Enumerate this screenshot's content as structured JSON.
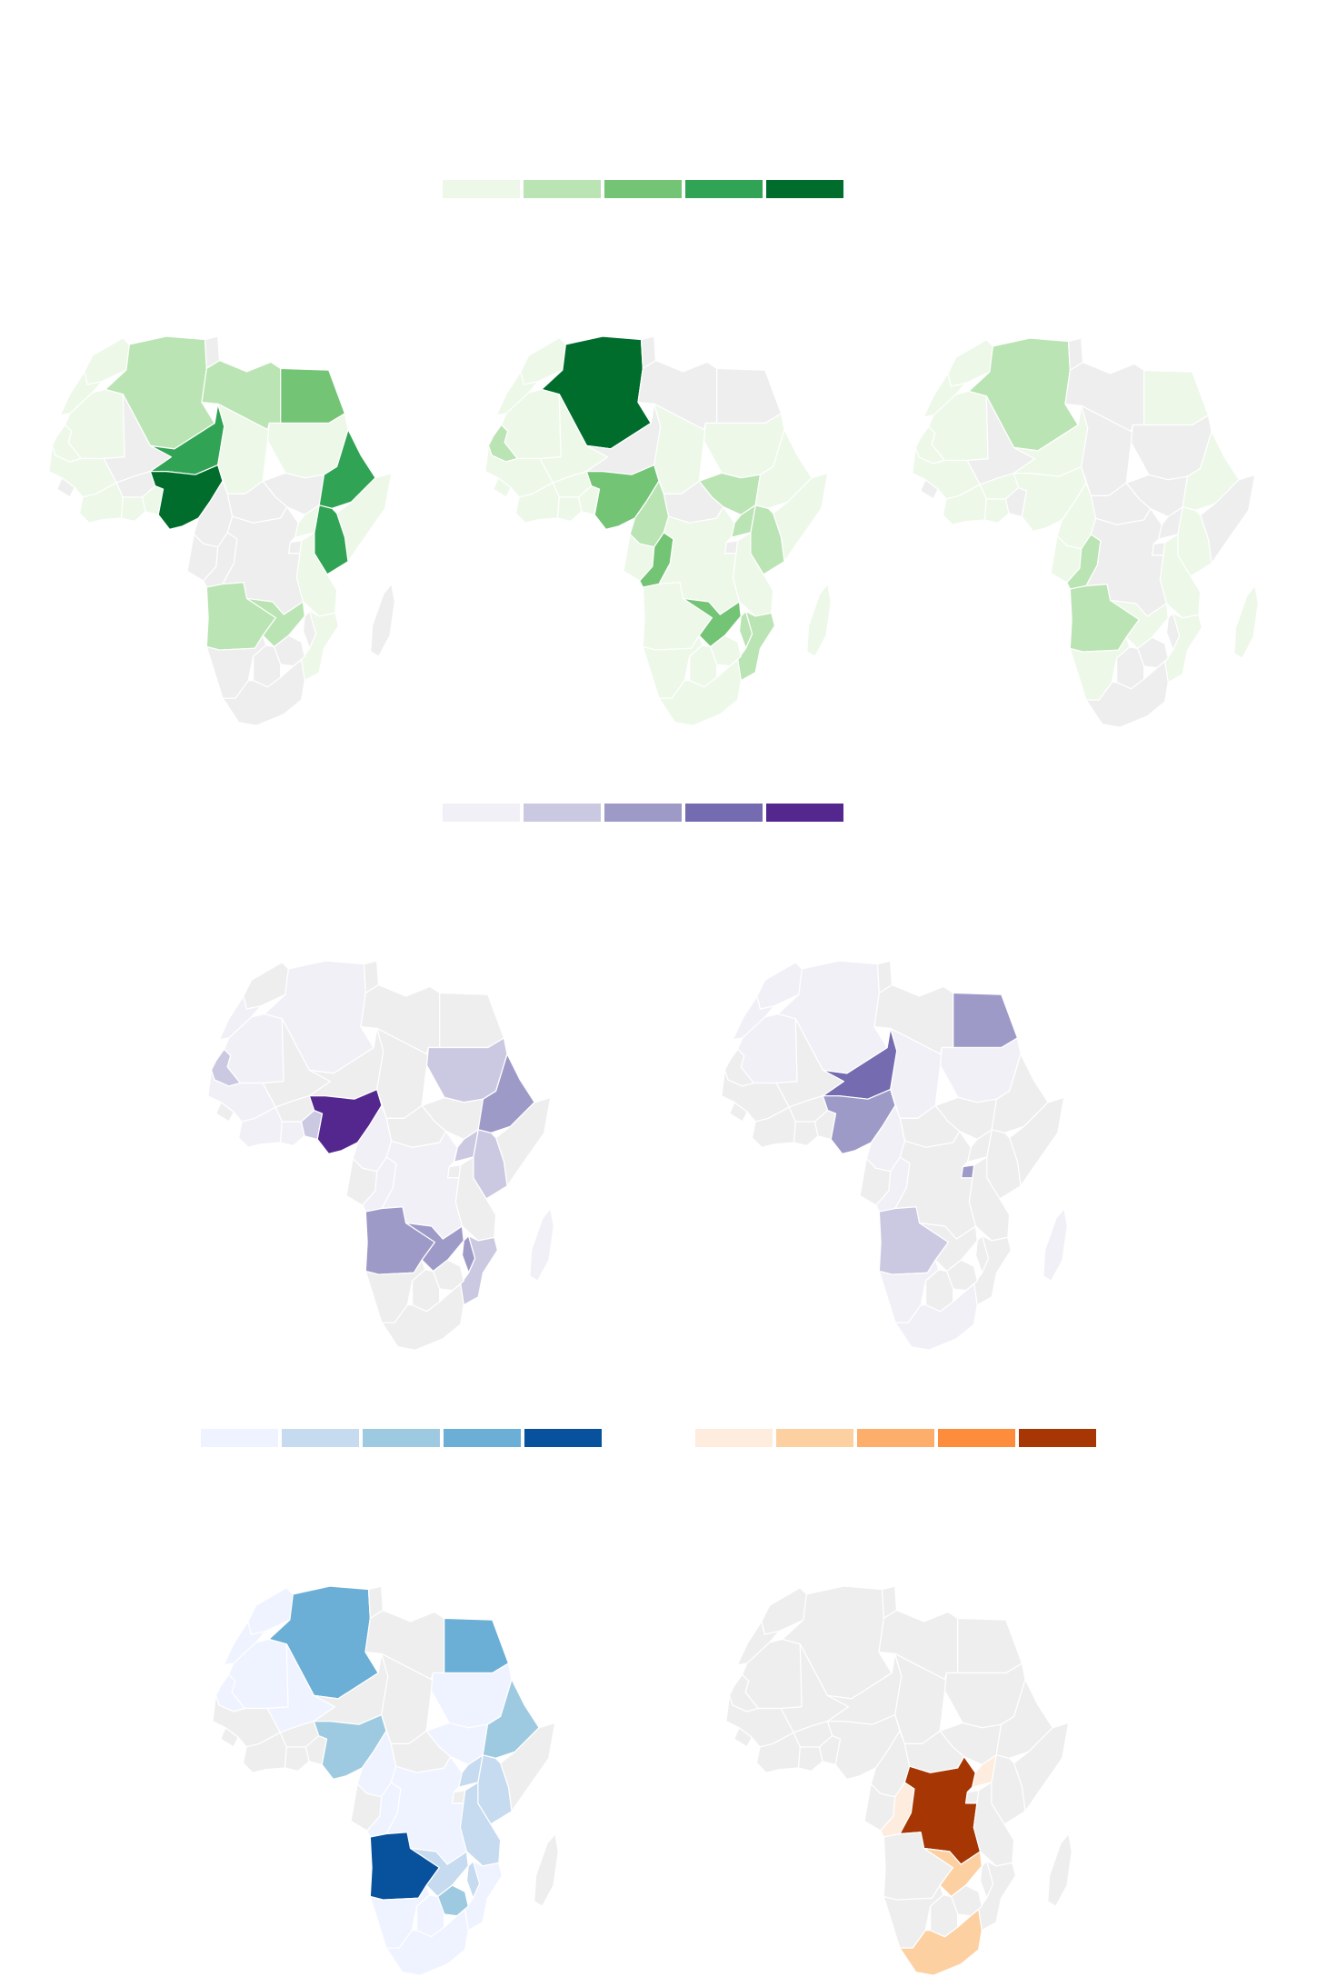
{
  "base_color": "#eeeeee",
  "legends": [
    {
      "id": "green",
      "colors": [
        "#edf8e9",
        "#bae4b3",
        "#74c476",
        "#31a354",
        "#006d2c"
      ]
    },
    {
      "id": "purple",
      "colors": [
        "#f2f0f7",
        "#cbc9e2",
        "#9e9ac8",
        "#756bb1",
        "#54278f"
      ]
    },
    {
      "id": "blue",
      "colors": [
        "#eff3ff",
        "#c6dbef",
        "#9ecae1",
        "#6baed6",
        "#08519c"
      ]
    },
    {
      "id": "orange",
      "colors": [
        "#feedde",
        "#fdd0a2",
        "#fdae6b",
        "#fd8d3c",
        "#a63603"
      ]
    }
  ],
  "maps": [
    {
      "id": "map-1",
      "palette": "green",
      "levels": {
        "algeria": 1,
        "libya": 1,
        "egypt": 2,
        "morocco": 0,
        "western_sahara": 0,
        "mauritania": 0,
        "niger": 3,
        "chad": 0,
        "sudan": 0,
        "nigeria": 4,
        "ethiopia": 3,
        "kenya": 3,
        "somalia": 0,
        "senegal": 0,
        "guinea": 0,
        "ivory_coast": 0,
        "ghana": 0,
        "benin": 0,
        "uganda": 0,
        "angola": 1,
        "zambia": 1,
        "tanzania": 0,
        "mozambique": 0
      }
    },
    {
      "id": "map-2",
      "palette": "green",
      "levels": {
        "algeria": 4,
        "morocco": 0,
        "western_sahara": 0,
        "mauritania": 0,
        "mali": 0,
        "senegal": 1,
        "guinea": 0,
        "sierra_leone": 0,
        "ivory_coast": 0,
        "burkina": 0,
        "ghana": 0,
        "benin": 0,
        "nigeria": 2,
        "cameroon": 1,
        "congo": 2,
        "gabon": 0,
        "chad": 0,
        "sudan": 0,
        "south_sudan": 1,
        "ethiopia": 0,
        "kenya": 1,
        "somalia": 0,
        "uganda": 1,
        "tanzania": 0,
        "drc": 0,
        "angola": 0,
        "zambia": 2,
        "malawi": 1,
        "mozambique": 1,
        "zimbabwe": 0,
        "botswana": 0,
        "namibia": 0,
        "south_africa": 0,
        "madagascar": 0
      }
    },
    {
      "id": "map-3",
      "palette": "green",
      "levels": {
        "algeria": 1,
        "morocco": 0,
        "western_sahara": 0,
        "mauritania": 0,
        "egypt": 0,
        "senegal": 0,
        "guinea": 0,
        "ivory_coast": 0,
        "ghana": 0,
        "burkina": 0,
        "niger": 0,
        "nigeria": 0,
        "cameroon": 0,
        "congo": 1,
        "gabon": 0,
        "angola": 1,
        "namibia": 0,
        "zambia": 0,
        "ethiopia": 0,
        "kenya": 0,
        "tanzania": 0,
        "mozambique": 0,
        "madagascar": 0
      }
    },
    {
      "id": "map-4",
      "palette": "purple",
      "levels": {
        "algeria": 0,
        "mauritania": 0,
        "western_sahara": 0,
        "senegal": 1,
        "guinea": 0,
        "ivory_coast": 0,
        "ghana": 0,
        "benin": 1,
        "nigeria": 4,
        "cameroon": 0,
        "sudan": 1,
        "ethiopia": 2,
        "kenya": 1,
        "uganda": 1,
        "drc": 0,
        "congo": 0,
        "angola": 2,
        "zambia": 2,
        "malawi": 2,
        "mozambique": 1,
        "madagascar": 0
      }
    },
    {
      "id": "map-5",
      "palette": "purple",
      "levels": {
        "algeria": 0,
        "morocco": 0,
        "mauritania": 0,
        "western_sahara": 0,
        "egypt": 2,
        "niger": 3,
        "nigeria": 2,
        "sudan": 0,
        "chad": 0,
        "cameroon": 0,
        "congo": 0,
        "rwanda": 2,
        "angola": 1,
        "namibia": 0,
        "south_africa": 0,
        "madagascar": 0
      }
    },
    {
      "id": "map-6",
      "palette": "blue",
      "levels": {
        "algeria": 3,
        "morocco": 0,
        "western_sahara": 0,
        "mauritania": 0,
        "mali": 0,
        "egypt": 3,
        "sudan": 0,
        "ethiopia": 2,
        "senegal": 0,
        "nigeria": 2,
        "cameroon": 0,
        "south_sudan": 0,
        "drc": 0,
        "congo": 0,
        "kenya": 1,
        "uganda": 1,
        "tanzania": 1,
        "angola": 4,
        "zambia": 1,
        "malawi": 1,
        "zimbabwe": 2,
        "mozambique": 0,
        "namibia": 0,
        "botswana": 0,
        "south_africa": 0
      }
    },
    {
      "id": "map-7",
      "palette": "orange",
      "levels": {
        "drc": 4,
        "zambia": 1,
        "south_africa": 1,
        "congo": 0,
        "uganda": 0
      }
    }
  ]
}
